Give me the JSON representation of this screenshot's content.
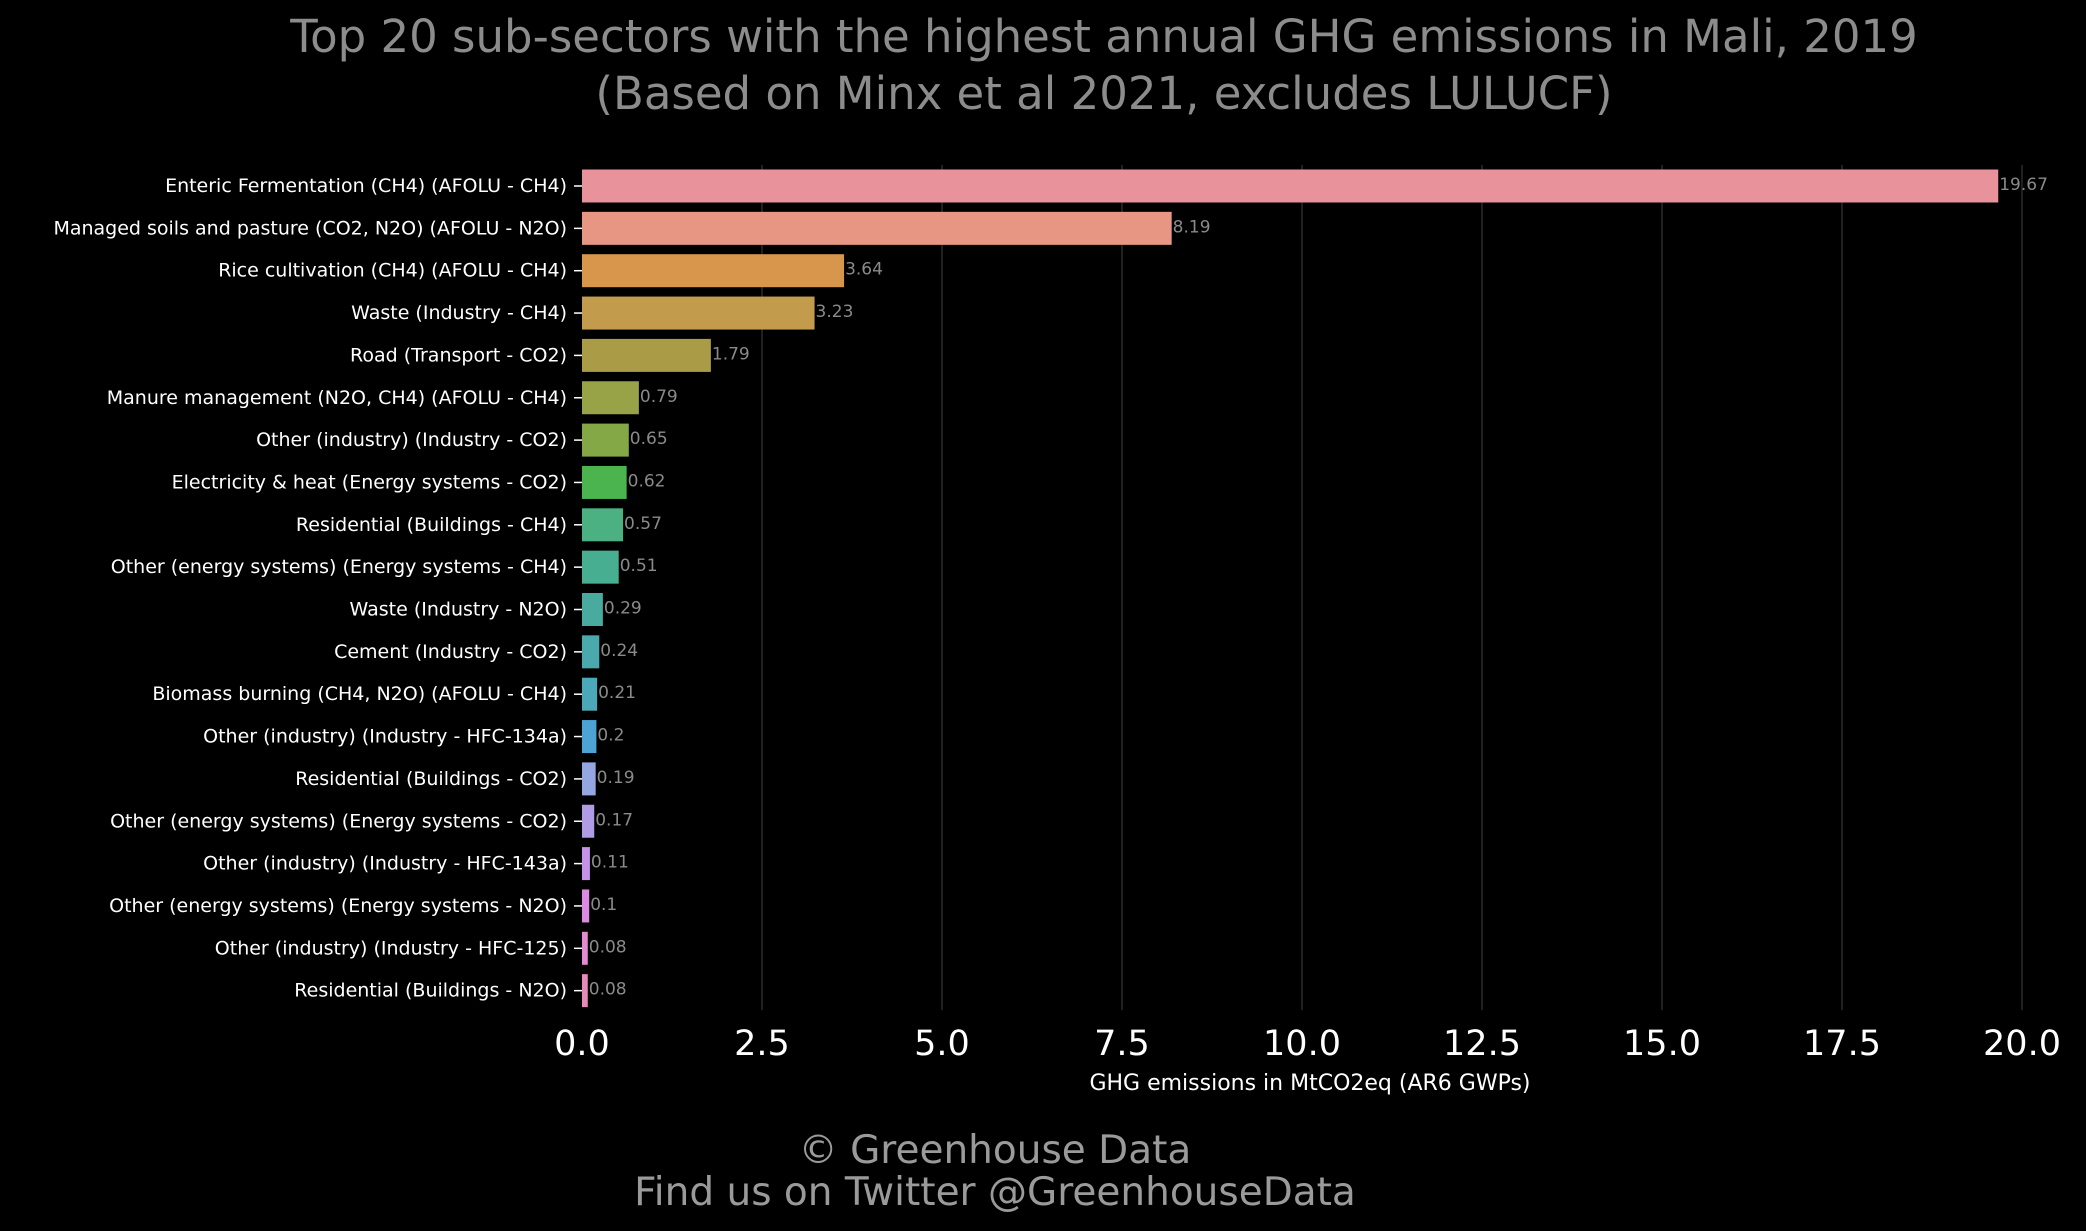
{
  "chart_data": {
    "type": "bar",
    "orientation": "horizontal",
    "title": "Top 20 sub-sectors with the highest annual GHG emissions in Mali, 2019",
    "subtitle": "(Based on Minx et al 2021, excludes LULUCF)",
    "xlabel": "GHG emissions in MtCO2eq (AR6 GWPs)",
    "ylabel": "",
    "xlim": [
      0,
      20
    ],
    "xticks": [
      "0.0",
      "2.5",
      "5.0",
      "7.5",
      "10.0",
      "12.5",
      "15.0",
      "17.5",
      "20.0"
    ],
    "grid": true,
    "categories": [
      "Enteric Fermentation (CH4) (AFOLU - CH4)",
      "Managed soils and pasture (CO2, N2O) (AFOLU - N2O)",
      "Rice cultivation (CH4) (AFOLU - CH4)",
      "Waste (Industry - CH4)",
      "Road (Transport - CO2)",
      "Manure management (N2O, CH4) (AFOLU - CH4)",
      "Other (industry) (Industry - CO2)",
      "Electricity & heat (Energy systems - CO2)",
      "Residential (Buildings - CH4)",
      "Other (energy systems) (Energy systems - CH4)",
      "Waste (Industry - N2O)",
      "Cement (Industry - CO2)",
      "Biomass burning (CH4, N2O) (AFOLU - CH4)",
      "Other (industry) (Industry - HFC-134a)",
      "Residential (Buildings - CO2)",
      "Other (energy systems) (Energy systems - CO2)",
      "Other (industry) (Industry - HFC-143a)",
      "Other (energy systems) (Energy systems - N2O)",
      "Other (industry) (Industry - HFC-125)",
      "Residential (Buildings - N2O)"
    ],
    "values": [
      19.67,
      8.19,
      3.64,
      3.23,
      1.79,
      0.79,
      0.65,
      0.62,
      0.57,
      0.51,
      0.29,
      0.24,
      0.21,
      0.2,
      0.19,
      0.17,
      0.11,
      0.1,
      0.08,
      0.08
    ],
    "value_labels": [
      "19.67",
      "8.19",
      "3.64",
      "3.23",
      "1.79",
      "0.79",
      "0.65",
      "0.62",
      "0.57",
      "0.51",
      "0.29",
      "0.24",
      "0.21",
      "0.2",
      "0.19",
      "0.17",
      "0.11",
      "0.1",
      "0.08",
      "0.08"
    ],
    "colors": [
      "#e8929c",
      "#e89684",
      "#d8954c",
      "#c29b4c",
      "#aa9c46",
      "#97a346",
      "#85a846",
      "#4bb44f",
      "#4bb082",
      "#47ae92",
      "#49ab9f",
      "#49a9ac",
      "#4aa8b8",
      "#4da3d4",
      "#96a6e2",
      "#b09be6",
      "#c592e6",
      "#db8ce2",
      "#e38ad2",
      "#e68ab8"
    ],
    "background": "#000000"
  },
  "footer": {
    "copyright": "© Greenhouse Data",
    "twitter": "Find us on Twitter @GreenhouseData"
  }
}
